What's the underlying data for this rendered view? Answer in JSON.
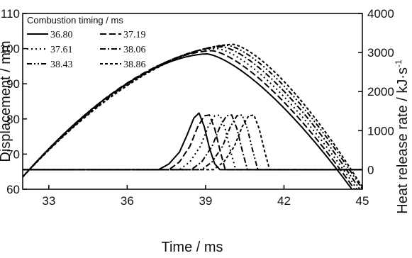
{
  "chart_data": {
    "type": "line",
    "xlabel": "Time / ms",
    "ylabel_left": "Displacement / mm",
    "ylabel_right": "Heat release rate / kJ·s",
    "ylabel_right_sup": "-1",
    "xlim": [
      32,
      45
    ],
    "ylim_left": [
      60,
      110
    ],
    "ylim_right": [
      -500,
      4000
    ],
    "x_ticks": [
      "33",
      "36",
      "39",
      "42",
      "45"
    ],
    "y_ticks_left": [
      "60",
      "70",
      "80",
      "90",
      "100",
      "110"
    ],
    "y_ticks_right": [
      "0",
      "1000",
      "2000",
      "3000",
      "4000"
    ],
    "legend": {
      "title": "Combustion timing / ms",
      "placement": "top-left"
    },
    "series": [
      {
        "name": "36.80",
        "dash": "solid",
        "displacement": {
          "start": 63.5,
          "peak_x": 39.05,
          "peak_y": 98.5,
          "end_x": 44.6
        },
        "heat_release": {
          "x": [
            32.0,
            37.2,
            37.6,
            38.0,
            38.3,
            38.55,
            38.75,
            38.95,
            39.15,
            39.35,
            39.55,
            45.0
          ],
          "y": [
            0,
            0,
            150,
            450,
            900,
            1320,
            1450,
            1100,
            550,
            150,
            0,
            0
          ]
        }
      },
      {
        "name": "37.19",
        "dash": "longdash",
        "displacement": {
          "start": 63.5,
          "peak_x": 39.25,
          "peak_y": 99.4,
          "end_x": 44.7
        },
        "heat_release": {
          "x": [
            32.0,
            37.6,
            38.0,
            38.4,
            38.7,
            38.95,
            39.15,
            39.35,
            39.55,
            39.75,
            45.0
          ],
          "y": [
            0,
            0,
            200,
            600,
            1100,
            1380,
            1400,
            1050,
            500,
            0,
            0
          ]
        }
      },
      {
        "name": "37.61",
        "dash": "dot",
        "displacement": {
          "start": 63.5,
          "peak_x": 39.45,
          "peak_y": 100.0,
          "end_x": 44.8
        },
        "heat_release": {
          "x": [
            32.0,
            38.0,
            38.4,
            38.8,
            39.1,
            39.35,
            39.55,
            39.75,
            39.95,
            40.15,
            45.0
          ],
          "y": [
            0,
            0,
            200,
            600,
            1100,
            1380,
            1400,
            1050,
            500,
            0,
            0
          ]
        }
      },
      {
        "name": "38.06",
        "dash": "dashdot",
        "displacement": {
          "start": 63.5,
          "peak_x": 39.65,
          "peak_y": 100.5,
          "end_x": 44.9
        },
        "heat_release": {
          "x": [
            32.0,
            38.45,
            38.85,
            39.25,
            39.55,
            39.8,
            40.0,
            40.2,
            40.4,
            40.6,
            45.0
          ],
          "y": [
            0,
            0,
            200,
            600,
            1100,
            1380,
            1400,
            1050,
            500,
            0,
            0
          ]
        }
      },
      {
        "name": "38.43",
        "dash": "dashdotdot",
        "displacement": {
          "start": 63.5,
          "peak_x": 39.85,
          "peak_y": 100.9,
          "end_x": 45.0
        },
        "heat_release": {
          "x": [
            32.0,
            38.85,
            39.25,
            39.65,
            39.95,
            40.2,
            40.4,
            40.6,
            40.8,
            41.0,
            45.0
          ],
          "y": [
            0,
            0,
            200,
            600,
            1100,
            1380,
            1400,
            1050,
            500,
            0,
            0
          ]
        }
      },
      {
        "name": "38.86",
        "dash": "shortdash",
        "displacement": {
          "start": 63.5,
          "peak_x": 40.05,
          "peak_y": 101.2,
          "end_x": 45.05
        },
        "heat_release": {
          "x": [
            32.0,
            39.3,
            39.7,
            40.1,
            40.4,
            40.65,
            40.85,
            41.05,
            41.25,
            41.45,
            45.0
          ],
          "y": [
            0,
            0,
            200,
            600,
            1100,
            1380,
            1400,
            1050,
            500,
            0,
            0
          ]
        }
      }
    ]
  }
}
